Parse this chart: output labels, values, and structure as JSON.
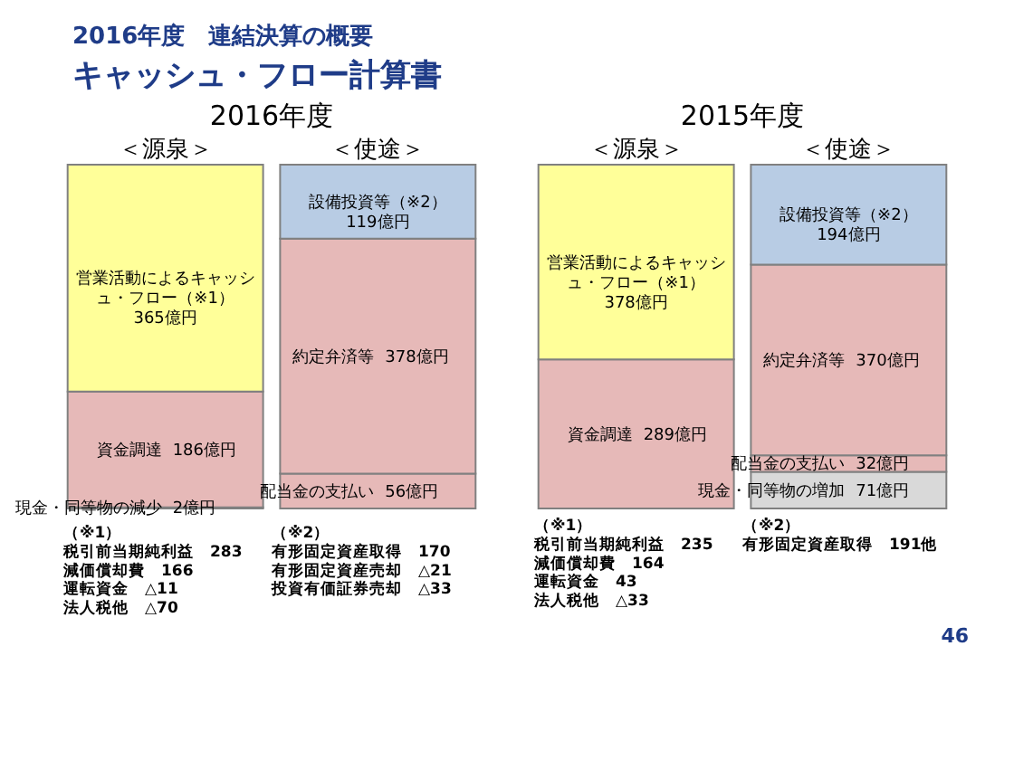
{
  "chart_data": [
    {
      "type": "other",
      "title": "2016年度　連結決算の概要",
      "subtitle": "キャッシュ・フロー計算書",
      "annotations": [
        "46"
      ]
    },
    {
      "type": "bar",
      "title": "2016年度",
      "categories": [
        "＜源泉＞",
        "＜使途＞"
      ],
      "stacked": true,
      "tick_labels": "x",
      "legend": false,
      "series": [
        {
          "name": "現金・同等物の減少",
          "color": "#e6b9b8",
          "values": [
            2,
            null
          ],
          "value_labels": [
            "2億円",
            null
          ]
        },
        {
          "name": "資金調達",
          "color": "#e6b9b8",
          "values": [
            186,
            null
          ],
          "value_labels": [
            "186億円",
            null
          ]
        },
        {
          "name": "営業活動によるキャッシュ・フロー（※1）",
          "color": "#ffff99",
          "values": [
            365,
            null
          ],
          "value_labels": [
            "365億円",
            null
          ]
        },
        {
          "name": "配当金の支払い",
          "color": "#e6b9b8",
          "values": [
            null,
            56
          ],
          "value_labels": [
            null,
            "56億円"
          ]
        },
        {
          "name": "約定弁済等",
          "color": "#e6b9b8",
          "values": [
            null,
            378
          ],
          "value_labels": [
            null,
            "378億円"
          ]
        },
        {
          "name": "設備投資等（※2）",
          "color": "#b8cce4",
          "values": [
            null,
            119
          ],
          "value_labels": [
            null,
            "119億円"
          ]
        }
      ],
      "annotations": [
        "（※1）",
        "税引前当期純利益　283",
        "減価償却費　166",
        "運転資金　△11",
        "法人税他　△70",
        "（※2）",
        "有形固定資産取得　170",
        "有形固定資産売却　△21",
        "投資有価証券売却　△33"
      ]
    },
    {
      "type": "bar",
      "title": "2015年度",
      "categories": [
        "＜源泉＞",
        "＜使途＞"
      ],
      "stacked": true,
      "tick_labels": "x",
      "legend": false,
      "series": [
        {
          "name": "資金調達",
          "color": "#e6b9b8",
          "values": [
            289,
            null
          ],
          "value_labels": [
            "289億円",
            null
          ]
        },
        {
          "name": "営業活動によるキャッシュ・フロー（※1）",
          "color": "#ffff99",
          "values": [
            378,
            null
          ],
          "value_labels": [
            "378億円",
            null
          ]
        },
        {
          "name": "現金・同等物の増加",
          "color": "#d9d9d9",
          "values": [
            null,
            71
          ],
          "value_labels": [
            null,
            "71億円"
          ]
        },
        {
          "name": "配当金の支払い",
          "color": "#e6b9b8",
          "values": [
            null,
            32
          ],
          "value_labels": [
            null,
            "32億円"
          ]
        },
        {
          "name": "約定弁済等",
          "color": "#e6b9b8",
          "values": [
            null,
            370
          ],
          "value_labels": [
            null,
            "370億円"
          ]
        },
        {
          "name": "設備投資等（※2）",
          "color": "#b8cce4",
          "values": [
            null,
            194
          ],
          "value_labels": [
            null,
            "194億円"
          ]
        }
      ],
      "annotations": [
        "（※1）",
        "税引前当期純利益　235",
        "減価償却費　164",
        "運転資金　43",
        "法人税他　△33",
        "（※2）",
        "有形固定資産取得　191他"
      ]
    }
  ]
}
